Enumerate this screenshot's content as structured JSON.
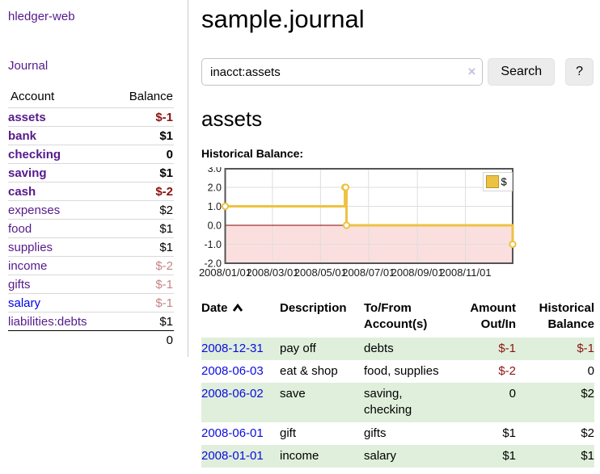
{
  "app": {
    "title": "hledger-web",
    "nav_journal": "Journal"
  },
  "sidebar": {
    "header": {
      "account": "Account",
      "balance": "Balance"
    },
    "rows": [
      {
        "name": "assets",
        "balance": "$-1",
        "indent": 1,
        "bold": true,
        "negative": "strong"
      },
      {
        "name": "bank",
        "balance": "$1",
        "indent": 2,
        "bold": true,
        "negative": null
      },
      {
        "name": "checking",
        "balance": "0",
        "indent": 3,
        "bold": true,
        "negative": null
      },
      {
        "name": "saving",
        "balance": "$1",
        "indent": 3,
        "bold": true,
        "negative": null
      },
      {
        "name": "cash",
        "balance": "$-2",
        "indent": 2,
        "bold": true,
        "negative": "strong"
      },
      {
        "name": "expenses",
        "balance": "$2",
        "indent": 1,
        "bold": false,
        "negative": null
      },
      {
        "name": "food",
        "balance": "$1",
        "indent": 2,
        "bold": false,
        "negative": null
      },
      {
        "name": "supplies",
        "balance": "$1",
        "indent": 2,
        "bold": false,
        "negative": null
      },
      {
        "name": "income",
        "balance": "$-2",
        "indent": 1,
        "bold": false,
        "negative": "soft"
      },
      {
        "name": "gifts",
        "balance": "$-1",
        "indent": 2,
        "bold": false,
        "negative": "soft"
      },
      {
        "name": "salary",
        "balance": "$-1",
        "indent": 2,
        "bold": false,
        "negative": "soft"
      },
      {
        "name": "liabilities:debts",
        "balance": "$1",
        "indent": 1,
        "bold": false,
        "negative": null
      }
    ],
    "total": "0"
  },
  "header": {
    "title": "sample.journal"
  },
  "search": {
    "value": "inacct:assets",
    "clear_icon": "×",
    "button": "Search",
    "help_button": "?"
  },
  "account_page": {
    "title": "assets",
    "chart_label": "Historical Balance:"
  },
  "chart_data": {
    "type": "line",
    "style": "step-after",
    "title": "Historical Balance:",
    "series": [
      {
        "name": "$",
        "points": [
          [
            "2008-01-01",
            1
          ],
          [
            "2008-06-01",
            2
          ],
          [
            "2008-06-02",
            2
          ],
          [
            "2008-06-03",
            0
          ],
          [
            "2008-12-31",
            -1
          ]
        ]
      }
    ],
    "ylim": [
      -2,
      3
    ],
    "yticks": [
      "3.0",
      "2.0",
      "1.0",
      "0.0",
      "-1.0",
      "-2.0"
    ],
    "xticks": [
      "2008/01/01",
      "2008/03/01",
      "2008/05/01",
      "2008/07/01",
      "2008/09/01",
      "2008/11/01"
    ],
    "legend": {
      "label": "$",
      "position": "top-right"
    },
    "grid": true,
    "colors": {
      "line": "#EDC240",
      "marker_fill": "#ffffff",
      "negative_region": "#FBDFDF",
      "zero_line": "#8B0000",
      "gridline": "#DDDDDD",
      "border": "#545454"
    }
  },
  "register": {
    "columns": {
      "date": "Date",
      "description": "Description",
      "accounts": "To/From Account(s)",
      "amount": "Amount Out/In",
      "balance": "Historical Balance"
    },
    "rows": [
      {
        "date": "2008-12-31",
        "description": "pay off",
        "accounts": "debts",
        "amount": "$-1",
        "balance": "$-1"
      },
      {
        "date": "2008-06-03",
        "description": "eat & shop",
        "accounts": "food, supplies",
        "amount": "$-2",
        "balance": "0"
      },
      {
        "date": "2008-06-02",
        "description": "save",
        "accounts": "saving, checking",
        "amount": "0",
        "balance": "$2"
      },
      {
        "date": "2008-06-01",
        "description": "gift",
        "accounts": "gifts",
        "amount": "$1",
        "balance": "$2"
      },
      {
        "date": "2008-01-01",
        "description": "income",
        "accounts": "salary",
        "amount": "$1",
        "balance": "$1"
      }
    ]
  }
}
